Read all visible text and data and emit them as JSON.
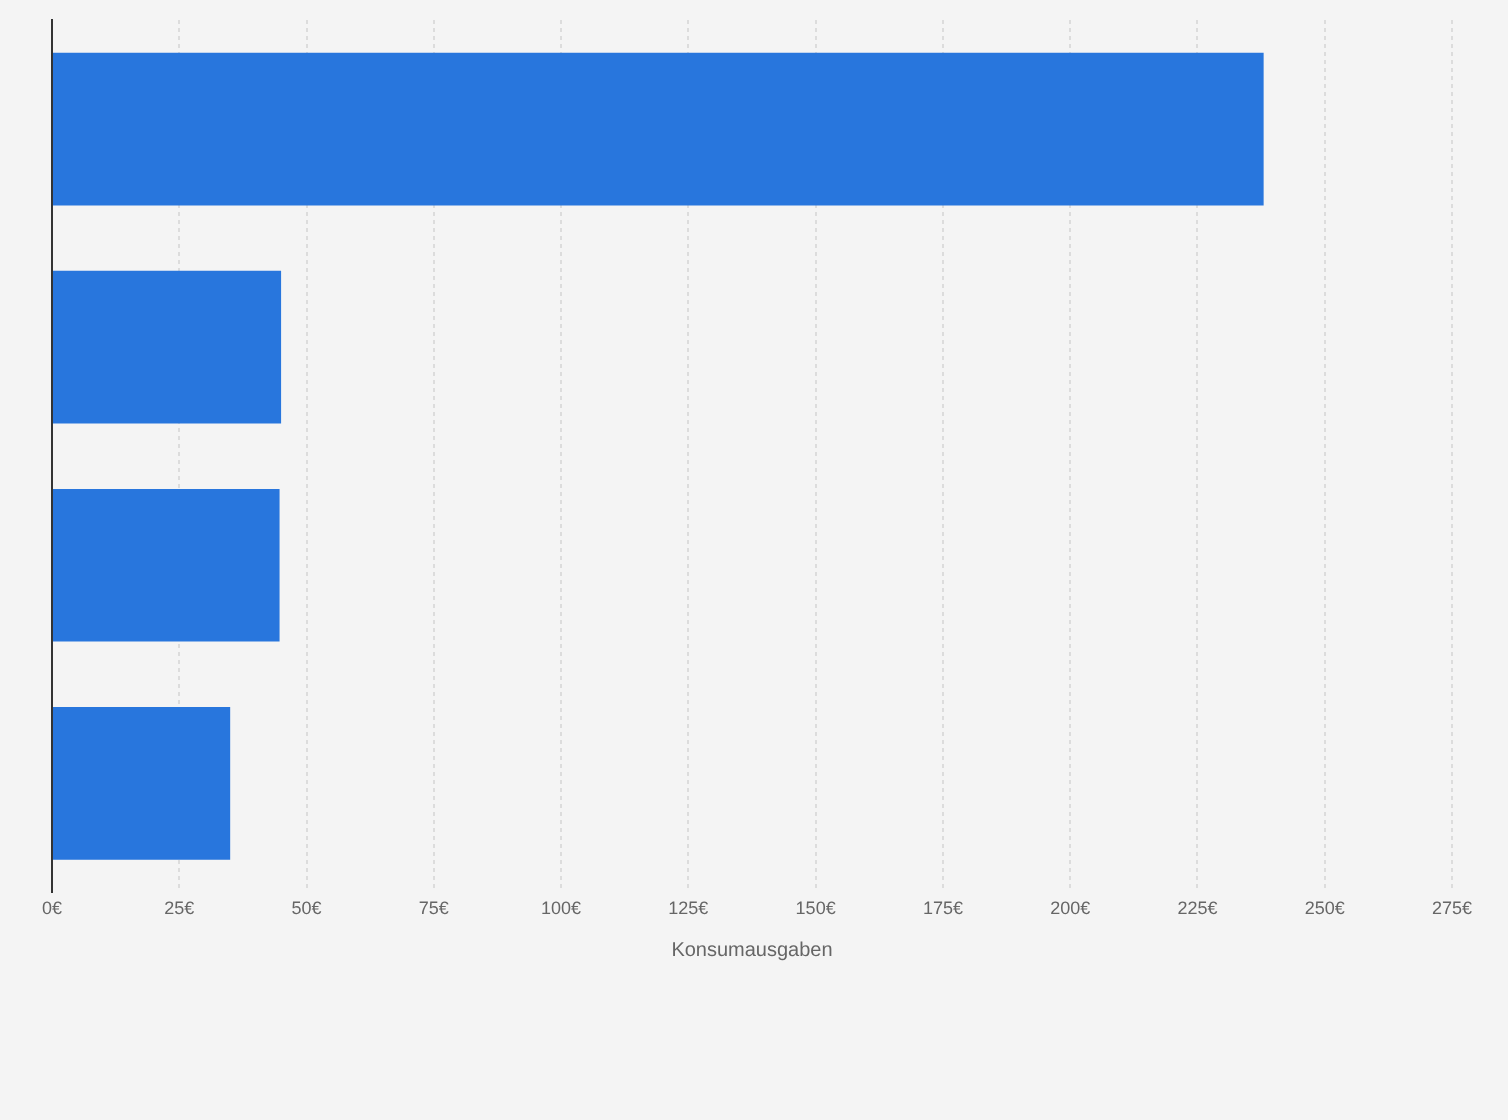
{
  "chart_data": {
    "type": "bar",
    "orientation": "horizontal",
    "xlabel": "Konsumausgaben",
    "categories": [
      null,
      null,
      null,
      null
    ],
    "values": [
      238,
      45,
      44.7,
      35
    ],
    "color": "#2876dd",
    "xlim": [
      0,
      275
    ],
    "xticks": [
      {
        "value": 0,
        "label": "0€"
      },
      {
        "value": 25,
        "label": "25€"
      },
      {
        "value": 50,
        "label": "50€"
      },
      {
        "value": 75,
        "label": "75€"
      },
      {
        "value": 100,
        "label": "100€"
      },
      {
        "value": 125,
        "label": "125€"
      },
      {
        "value": 150,
        "label": "150€"
      },
      {
        "value": 175,
        "label": "175€"
      },
      {
        "value": 200,
        "label": "200€"
      },
      {
        "value": 225,
        "label": "225€"
      },
      {
        "value": 250,
        "label": "250€"
      },
      {
        "value": 275,
        "label": "275€"
      }
    ],
    "grid": "x",
    "legend": false
  }
}
